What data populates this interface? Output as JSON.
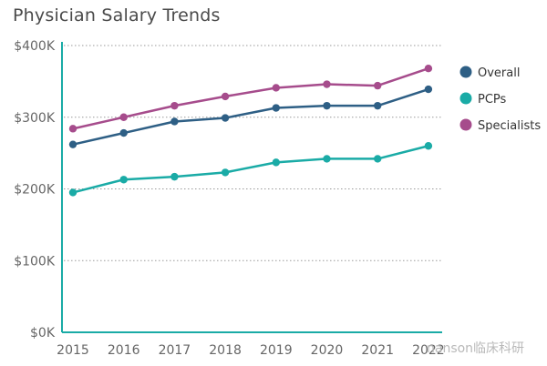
{
  "chart_data": {
    "type": "line",
    "title": "Physician Salary Trends",
    "xlabel": "",
    "ylabel": "",
    "categories": [
      "2015",
      "2016",
      "2017",
      "2018",
      "2019",
      "2020",
      "2021",
      "2022"
    ],
    "ylim": [
      0,
      400000
    ],
    "y_ticks": [
      {
        "value": 0,
        "label": "$0K"
      },
      {
        "value": 100000,
        "label": "$100K"
      },
      {
        "value": 200000,
        "label": "$200K"
      },
      {
        "value": 300000,
        "label": "$300K"
      },
      {
        "value": 400000,
        "label": "$400K"
      }
    ],
    "grid": "horizontal dotted",
    "legend_position": "right",
    "series": [
      {
        "name": "Overall",
        "color": "#2e5f85",
        "values": [
          262000,
          278000,
          294000,
          299000,
          313000,
          316000,
          316000,
          339000
        ]
      },
      {
        "name": "PCPs",
        "color": "#1aaba6",
        "values": [
          195000,
          213000,
          217000,
          223000,
          237000,
          242000,
          242000,
          260000
        ]
      },
      {
        "name": "Specialists",
        "color": "#a64c8c",
        "values": [
          284000,
          300000,
          316000,
          329000,
          341000,
          346000,
          344000,
          368000
        ]
      }
    ]
  },
  "watermark": "nanson临床科研"
}
